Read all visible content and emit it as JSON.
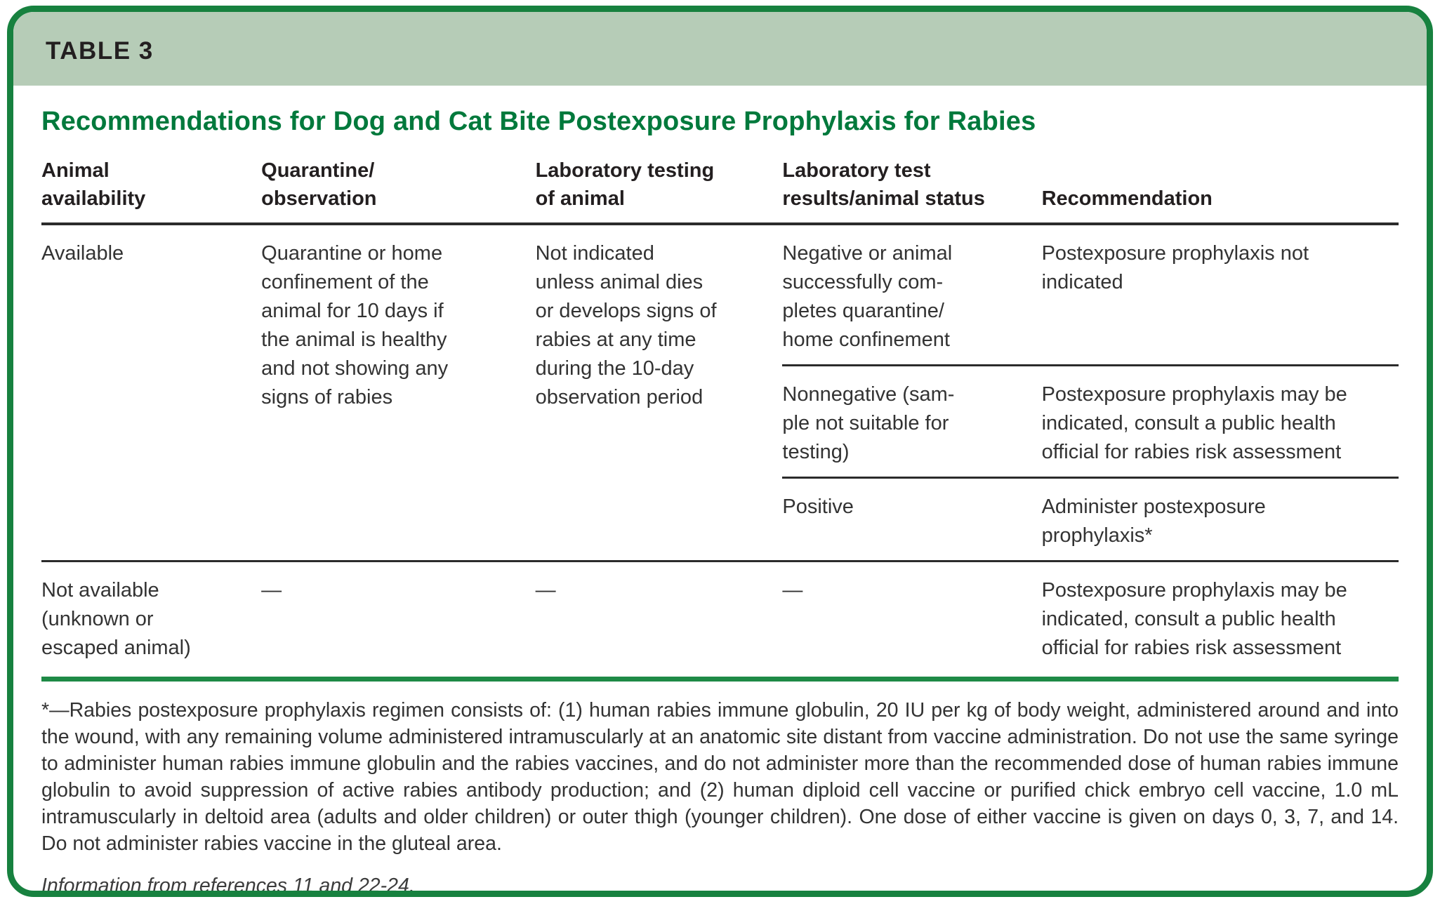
{
  "colors": {
    "frame_green": "#17813f",
    "band_green": "#b6ccb7",
    "title_green": "#00793c",
    "rule_green": "#1e8a46",
    "text_dark": "#231f20",
    "text_body": "#333333"
  },
  "band": {
    "label": "TABLE 3"
  },
  "title": "Recommendations for Dog and Cat Bite Postexposure Prophylaxis for Rabies",
  "table": {
    "header": [
      "Animal\navailability",
      "Quarantine/\nobservation",
      "Laboratory testing\nof animal",
      "Laboratory test\nresults/animal status",
      "Recommendation"
    ],
    "available": {
      "animal_availability": "Available",
      "quarantine_observation": "Quarantine or home\nconfinement of the\nanimal for 10 days if\nthe animal is healthy\nand not showing any\nsigns of rabies",
      "laboratory_testing": "Not indicated\nunless animal dies\nor develops signs of\nrabies at any time\nduring the 10-day\nobservation period",
      "sub_rows": [
        {
          "result": "Negative or animal\nsuccessfully com-\npletes quarantine/\nhome confinement",
          "recommendation": "Postexposure prophylaxis not\nindicated"
        },
        {
          "result": "Nonnegative (sam-\nple not suitable for\ntesting)",
          "recommendation": "Postexposure prophylaxis may be\nindicated, consult a public health\nofficial for rabies risk assessment"
        },
        {
          "result": "Positive",
          "recommendation": "Administer postexposure\nprophylaxis*"
        }
      ]
    },
    "not_available": {
      "animal_availability": "Not available\n(unknown or\nescaped animal)",
      "quarantine_observation": "—",
      "laboratory_testing": "—",
      "result": "—",
      "recommendation": "Postexposure prophylaxis may be\nindicated, consult a public health\nofficial for rabies risk assessment"
    }
  },
  "footnote": "*—Rabies postexposure prophylaxis regimen consists of: (1) human rabies immune globulin, 20 IU per kg of body weight, administered around and into the wound, with any remaining volume administered intramuscularly at an anatomic site distant from vaccine administration. Do not use the same syringe to administer human rabies immune globulin and the rabies vaccines, and do not administer more than the recommended dose of human rabies immune globulin to avoid suppression of active rabies antibody production; and (2) human diploid cell vaccine or purified chick embryo cell vaccine, 1.0 mL intramuscularly in deltoid area (adults and older children) or outer thigh (younger children). One dose of either vaccine is given on days 0, 3, 7, and 14. Do not administer rabies vaccine in the gluteal area.",
  "source": "Information from references 11 and 22-24."
}
